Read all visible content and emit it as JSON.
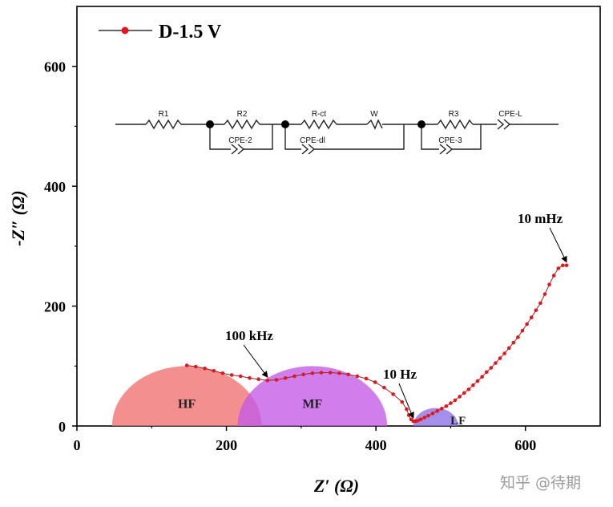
{
  "chart_data": {
    "type": "scatter",
    "title": "",
    "xlabel": "Z′ (Ω)",
    "ylabel": "-Z″ (Ω)",
    "xlim": [
      0,
      700
    ],
    "ylim": [
      0,
      700
    ],
    "xticks": [
      0,
      200,
      400,
      600
    ],
    "yticks": [
      0,
      200,
      400,
      600
    ],
    "legend": {
      "label": "D-1.5 V",
      "color": "#e8141a",
      "position": "top-left"
    },
    "series": [
      {
        "name": "D-1.5 V",
        "color": "#e8141a",
        "x": [
          147,
          159,
          171,
          183,
          195,
          207,
          219,
          231,
          243,
          255,
          267,
          279,
          291,
          303,
          315,
          327,
          339,
          351,
          363,
          375,
          387,
          399,
          411,
          423,
          435,
          441,
          444,
          447,
          450,
          453,
          456,
          460,
          465,
          470,
          476,
          482,
          488,
          494,
          500,
          506,
          512,
          518,
          524,
          530,
          536,
          542,
          548,
          554,
          560,
          566,
          572,
          578,
          584,
          590,
          596,
          602,
          608,
          614,
          620,
          626,
          632,
          638,
          644,
          650,
          655
        ],
        "y": [
          101,
          99,
          96,
          92,
          88,
          85,
          83,
          80,
          78,
          76,
          77,
          80,
          83,
          86,
          88,
          89,
          89,
          88,
          86,
          83,
          79,
          73,
          64,
          53,
          40,
          28,
          18,
          11,
          8,
          8,
          9,
          11,
          14,
          17,
          21,
          25,
          29,
          33,
          38,
          43,
          49,
          55,
          61,
          68,
          75,
          82,
          90,
          97,
          105,
          113,
          121,
          130,
          139,
          148,
          159,
          170,
          181,
          193,
          205,
          220,
          236,
          251,
          263,
          268,
          268
        ]
      }
    ],
    "regions": [
      {
        "label": "HF",
        "center": 147,
        "radius": 100,
        "color": "#f07070"
      },
      {
        "label": "MF",
        "center": 315,
        "radius": 100,
        "color": "#c15ae6"
      },
      {
        "label": "LF",
        "center": 480,
        "radius": 30,
        "color": "#8a70e6"
      }
    ],
    "annotations": [
      {
        "text": "100 kHz",
        "x": 255,
        "y": 76
      },
      {
        "text": "10 Hz",
        "x": 450,
        "y": 8
      },
      {
        "text": "10 mHz",
        "x": 655,
        "y": 268
      }
    ],
    "circuit": {
      "labels": [
        "R1",
        "R2",
        "CPE-2",
        "R-ct",
        "W",
        "CPE-dl",
        "R3",
        "CPE-3",
        "CPE-L"
      ]
    }
  },
  "watermark": "知乎 @待期"
}
